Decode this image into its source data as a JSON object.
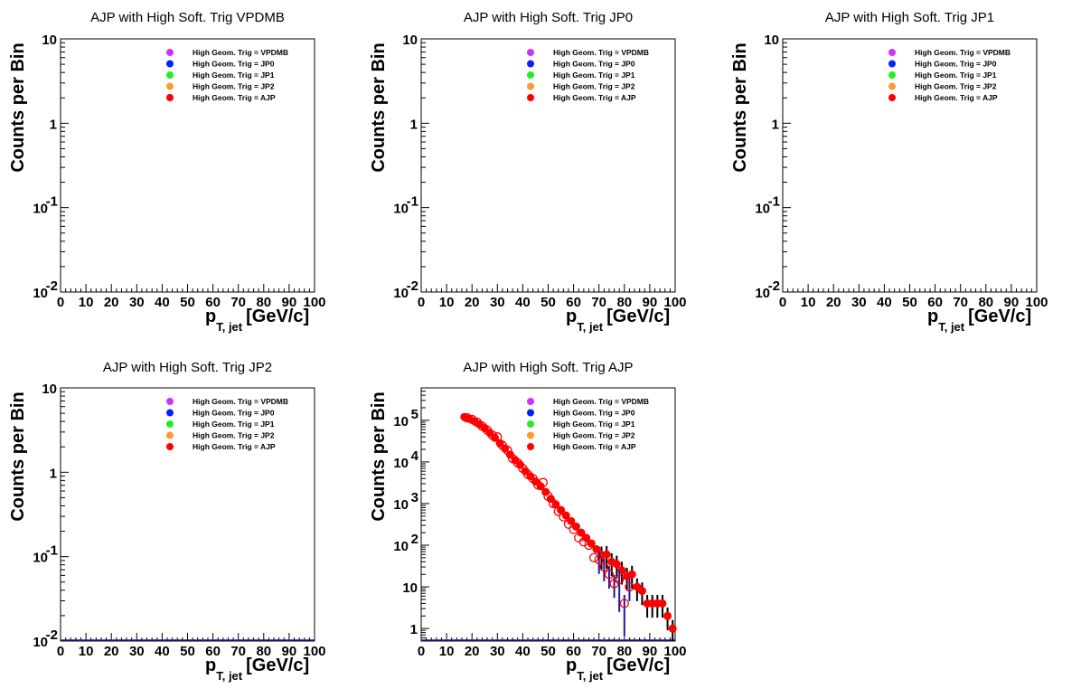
{
  "chart_data": [
    {
      "type": "scatter",
      "title": "AJP with High Soft. Trig VPDMB",
      "xlabel_main": "p",
      "xlabel_sub": "T, jet",
      "xlabel_unit": "[GeV/c]",
      "ylabel": "Counts per Bin",
      "xlim": [
        0,
        100
      ],
      "ylim": [
        0.01,
        10
      ],
      "yscale": "log",
      "xticks": [
        "0",
        "10",
        "20",
        "30",
        "40",
        "50",
        "60",
        "70",
        "80",
        "90",
        "100"
      ],
      "yticks": [
        {
          "v": 10,
          "base": "10",
          "exp": ""
        },
        {
          "v": 1,
          "base": "1",
          "exp": ""
        },
        {
          "v": 0.1,
          "base": "10",
          "exp": "-1"
        },
        {
          "v": 0.01,
          "base": "10",
          "exp": "-2"
        }
      ],
      "legend": [
        {
          "label": "High Geom. Trig = VPDMB",
          "color": "#cc33ff"
        },
        {
          "label": "High Geom. Trig = JP0",
          "color": "#0022ff"
        },
        {
          "label": "High Geom. Trig = JP1",
          "color": "#22ee22"
        },
        {
          "label": "High Geom. Trig = JP2",
          "color": "#ff9933"
        },
        {
          "label": "High Geom. Trig = AJP",
          "color": "#ff0000"
        }
      ],
      "series": []
    },
    {
      "type": "scatter",
      "title": "AJP with High Soft. Trig JP0",
      "xlabel_main": "p",
      "xlabel_sub": "T, jet",
      "xlabel_unit": "[GeV/c]",
      "ylabel": "Counts per Bin",
      "xlim": [
        0,
        100
      ],
      "ylim": [
        0.01,
        10
      ],
      "yscale": "log",
      "xticks": [
        "0",
        "10",
        "20",
        "30",
        "40",
        "50",
        "60",
        "70",
        "80",
        "90",
        "100"
      ],
      "yticks": [
        {
          "v": 10,
          "base": "10",
          "exp": ""
        },
        {
          "v": 1,
          "base": "1",
          "exp": ""
        },
        {
          "v": 0.1,
          "base": "10",
          "exp": "-1"
        },
        {
          "v": 0.01,
          "base": "10",
          "exp": "-2"
        }
      ],
      "legend": [
        {
          "label": "High Geom. Trig = VPDMB",
          "color": "#cc33ff"
        },
        {
          "label": "High Geom. Trig = JP0",
          "color": "#0022ff"
        },
        {
          "label": "High Geom. Trig = JP1",
          "color": "#22ee22"
        },
        {
          "label": "High Geom. Trig = JP2",
          "color": "#ff9933"
        },
        {
          "label": "High Geom. Trig = AJP",
          "color": "#ff0000"
        }
      ],
      "series": []
    },
    {
      "type": "scatter",
      "title": "AJP with High Soft. Trig JP1",
      "xlabel_main": "p",
      "xlabel_sub": "T, jet",
      "xlabel_unit": "[GeV/c]",
      "ylabel": "Counts per Bin",
      "xlim": [
        0,
        100
      ],
      "ylim": [
        0.01,
        10
      ],
      "yscale": "log",
      "xticks": [
        "0",
        "10",
        "20",
        "30",
        "40",
        "50",
        "60",
        "70",
        "80",
        "90",
        "100"
      ],
      "yticks": [
        {
          "v": 10,
          "base": "10",
          "exp": ""
        },
        {
          "v": 1,
          "base": "1",
          "exp": ""
        },
        {
          "v": 0.1,
          "base": "10",
          "exp": "-1"
        },
        {
          "v": 0.01,
          "base": "10",
          "exp": "-2"
        }
      ],
      "legend": [
        {
          "label": "High Geom. Trig = VPDMB",
          "color": "#cc33ff"
        },
        {
          "label": "High Geom. Trig = JP0",
          "color": "#0022ff"
        },
        {
          "label": "High Geom. Trig = JP1",
          "color": "#22ee22"
        },
        {
          "label": "High Geom. Trig = JP2",
          "color": "#ff9933"
        },
        {
          "label": "High Geom. Trig = AJP",
          "color": "#ff0000"
        }
      ],
      "series": []
    },
    {
      "type": "scatter",
      "title": "AJP with High Soft. Trig JP2",
      "xlabel_main": "p",
      "xlabel_sub": "T, jet",
      "xlabel_unit": "[GeV/c]",
      "ylabel": "Counts per Bin",
      "xlim": [
        0,
        100
      ],
      "ylim": [
        0.01,
        10
      ],
      "yscale": "log",
      "xticks": [
        "0",
        "10",
        "20",
        "30",
        "40",
        "50",
        "60",
        "70",
        "80",
        "90",
        "100"
      ],
      "yticks": [
        {
          "v": 10,
          "base": "10",
          "exp": ""
        },
        {
          "v": 1,
          "base": "1",
          "exp": ""
        },
        {
          "v": 0.1,
          "base": "10",
          "exp": "-1"
        },
        {
          "v": 0.01,
          "base": "10",
          "exp": "-2"
        }
      ],
      "legend": [
        {
          "label": "High Geom. Trig = VPDMB",
          "color": "#cc33ff"
        },
        {
          "label": "High Geom. Trig = JP0",
          "color": "#0022ff"
        },
        {
          "label": "High Geom. Trig = JP1",
          "color": "#22ee22"
        },
        {
          "label": "High Geom. Trig = JP2",
          "color": "#ff9933"
        },
        {
          "label": "High Geom. Trig = AJP",
          "color": "#ff0000"
        }
      ],
      "series": []
    },
    {
      "type": "scatter",
      "title": "AJP with High Soft. Trig AJP",
      "xlabel_main": "p",
      "xlabel_sub": "T, jet",
      "xlabel_unit": "[GeV/c]",
      "ylabel": "Counts per Bin",
      "xlim": [
        0,
        100
      ],
      "ylim": [
        0.5,
        600000
      ],
      "yscale": "log",
      "xticks": [
        "0",
        "10",
        "20",
        "30",
        "40",
        "50",
        "60",
        "70",
        "80",
        "90",
        "100"
      ],
      "yticks": [
        {
          "v": 100000,
          "base": "10",
          "exp": "5"
        },
        {
          "v": 10000,
          "base": "10",
          "exp": "4"
        },
        {
          "v": 1000,
          "base": "10",
          "exp": "3"
        },
        {
          "v": 100,
          "base": "10",
          "exp": "2"
        },
        {
          "v": 10,
          "base": "10",
          "exp": ""
        },
        {
          "v": 1,
          "base": "1",
          "exp": ""
        }
      ],
      "legend": [
        {
          "label": "High Geom. Trig = VPDMB",
          "color": "#cc33ff"
        },
        {
          "label": "High Geom. Trig = JP0",
          "color": "#0022ff"
        },
        {
          "label": "High Geom. Trig = JP1",
          "color": "#22ee22"
        },
        {
          "label": "High Geom. Trig = JP2",
          "color": "#ff9933"
        },
        {
          "label": "High Geom. Trig = AJP",
          "color": "#ff0000"
        }
      ],
      "series": [
        {
          "name": "High Geom. Trig = AJP",
          "color": "#ff0000",
          "style": "filled",
          "x": [
            17,
            19,
            21,
            23,
            25,
            27,
            29,
            31,
            33,
            35,
            37,
            39,
            41,
            43,
            45,
            47,
            49,
            51,
            53,
            55,
            57,
            59,
            61,
            63,
            65,
            67,
            69,
            71,
            73,
            75,
            77,
            79,
            81,
            83,
            85,
            87,
            89,
            91,
            93,
            95,
            97,
            99
          ],
          "y": [
            120000,
            110000,
            95000,
            80000,
            65000,
            50000,
            38000,
            28000,
            21000,
            15000,
            11000,
            8500,
            6000,
            4500,
            3400,
            2600,
            1900,
            1300,
            950,
            700,
            520,
            380,
            280,
            200,
            150,
            110,
            80,
            58,
            60,
            40,
            35,
            25,
            18,
            20,
            10,
            8,
            4,
            4,
            4,
            4,
            2,
            1
          ]
        },
        {
          "name": "open",
          "color": "#ff0000",
          "style": "open",
          "x": [
            18,
            20,
            22,
            24,
            26,
            28,
            30,
            32,
            34,
            36,
            38,
            40,
            42,
            44,
            46,
            48,
            50,
            52,
            54,
            56,
            58,
            60,
            62,
            64,
            66,
            68,
            70,
            72,
            74,
            76,
            78,
            80,
            82
          ],
          "y": [
            115000,
            105000,
            90000,
            72000,
            58000,
            44000,
            40000,
            25000,
            19000,
            12000,
            9500,
            7000,
            5000,
            4000,
            2800,
            3200,
            1500,
            1000,
            650,
            480,
            320,
            240,
            150,
            120,
            100,
            50,
            45,
            30,
            20,
            12,
            15,
            4,
            10
          ]
        }
      ]
    }
  ]
}
